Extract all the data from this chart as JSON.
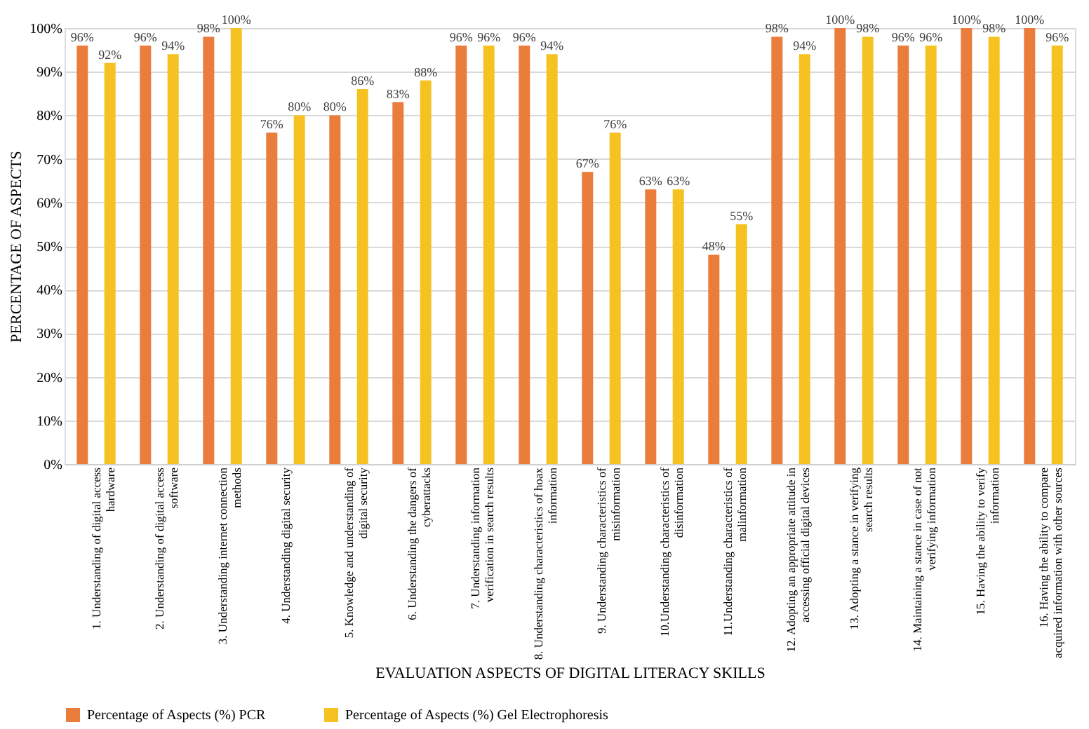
{
  "chart_data": {
    "type": "bar",
    "xlabel": "EVALUATION ASPECTS OF DIGITAL LITERACY SKILLS",
    "ylabel": "PERCENTAGE OF ASPECTS",
    "categories": [
      "1. Understanding of digital access hardware",
      "2. Understanding of digital access software",
      "3. Understanding internet connection methods",
      "4. Understanding digital security",
      "5. Knowledge and understanding of digital security",
      "6. Understanding the dangers of cyberattacks",
      "7. Understanding information verification in search results",
      "8. Understanding characteristics of hoax information",
      "9. Understanding characteristics of misinformation",
      "10.Understanding characteristics of disinformation",
      "11.Understanding characteristics of malinformation",
      "12. Adopting an appropriate attitude in accessing official digital devices",
      "13. Adopting a stance in verifying search results",
      "14. Maintaining a stance in case of not verifying information",
      "15. Having the ability to verify information",
      "16. Having the ability to compare acquired information with other sources"
    ],
    "series": [
      {
        "name": "Percentage of Aspects (%) PCR",
        "color": "#ea7d3c",
        "values": [
          96,
          96,
          98,
          76,
          80,
          83,
          96,
          96,
          67,
          63,
          48,
          98,
          100,
          96,
          100,
          100
        ],
        "value_labels": [
          "96%",
          "96%",
          "98%",
          "76%",
          "80%",
          "83%",
          "96%",
          "96%",
          "67%",
          "63%",
          "48%",
          "98%",
          "100%",
          "96%",
          "100%",
          "100%"
        ]
      },
      {
        "name": "Percentage of Aspects (%) Gel Electrophoresis",
        "color": "#f6c222",
        "values": [
          92,
          94,
          100,
          80,
          86,
          88,
          96,
          94,
          76,
          63,
          55,
          94,
          98,
          96,
          98,
          96
        ],
        "value_labels": [
          "92%",
          "94%",
          "100%",
          "80%",
          "86%",
          "88%",
          "96%",
          "94%",
          "76%",
          "63%",
          "55%",
          "94%",
          "98%",
          "96%",
          "98%",
          "96%"
        ]
      }
    ],
    "ylim": [
      0,
      100
    ],
    "yticks": [
      {
        "value": 0,
        "label": "0%"
      },
      {
        "value": 10,
        "label": "10%"
      },
      {
        "value": 20,
        "label": "20%"
      },
      {
        "value": 30,
        "label": "30%"
      },
      {
        "value": 40,
        "label": "40%"
      },
      {
        "value": 50,
        "label": "50%"
      },
      {
        "value": 60,
        "label": "60%"
      },
      {
        "value": 70,
        "label": "70%"
      },
      {
        "value": 80,
        "label": "80%"
      },
      {
        "value": 90,
        "label": "90%"
      },
      {
        "value": 100,
        "label": "100%"
      }
    ],
    "grid": "y",
    "legend": "bottom"
  }
}
